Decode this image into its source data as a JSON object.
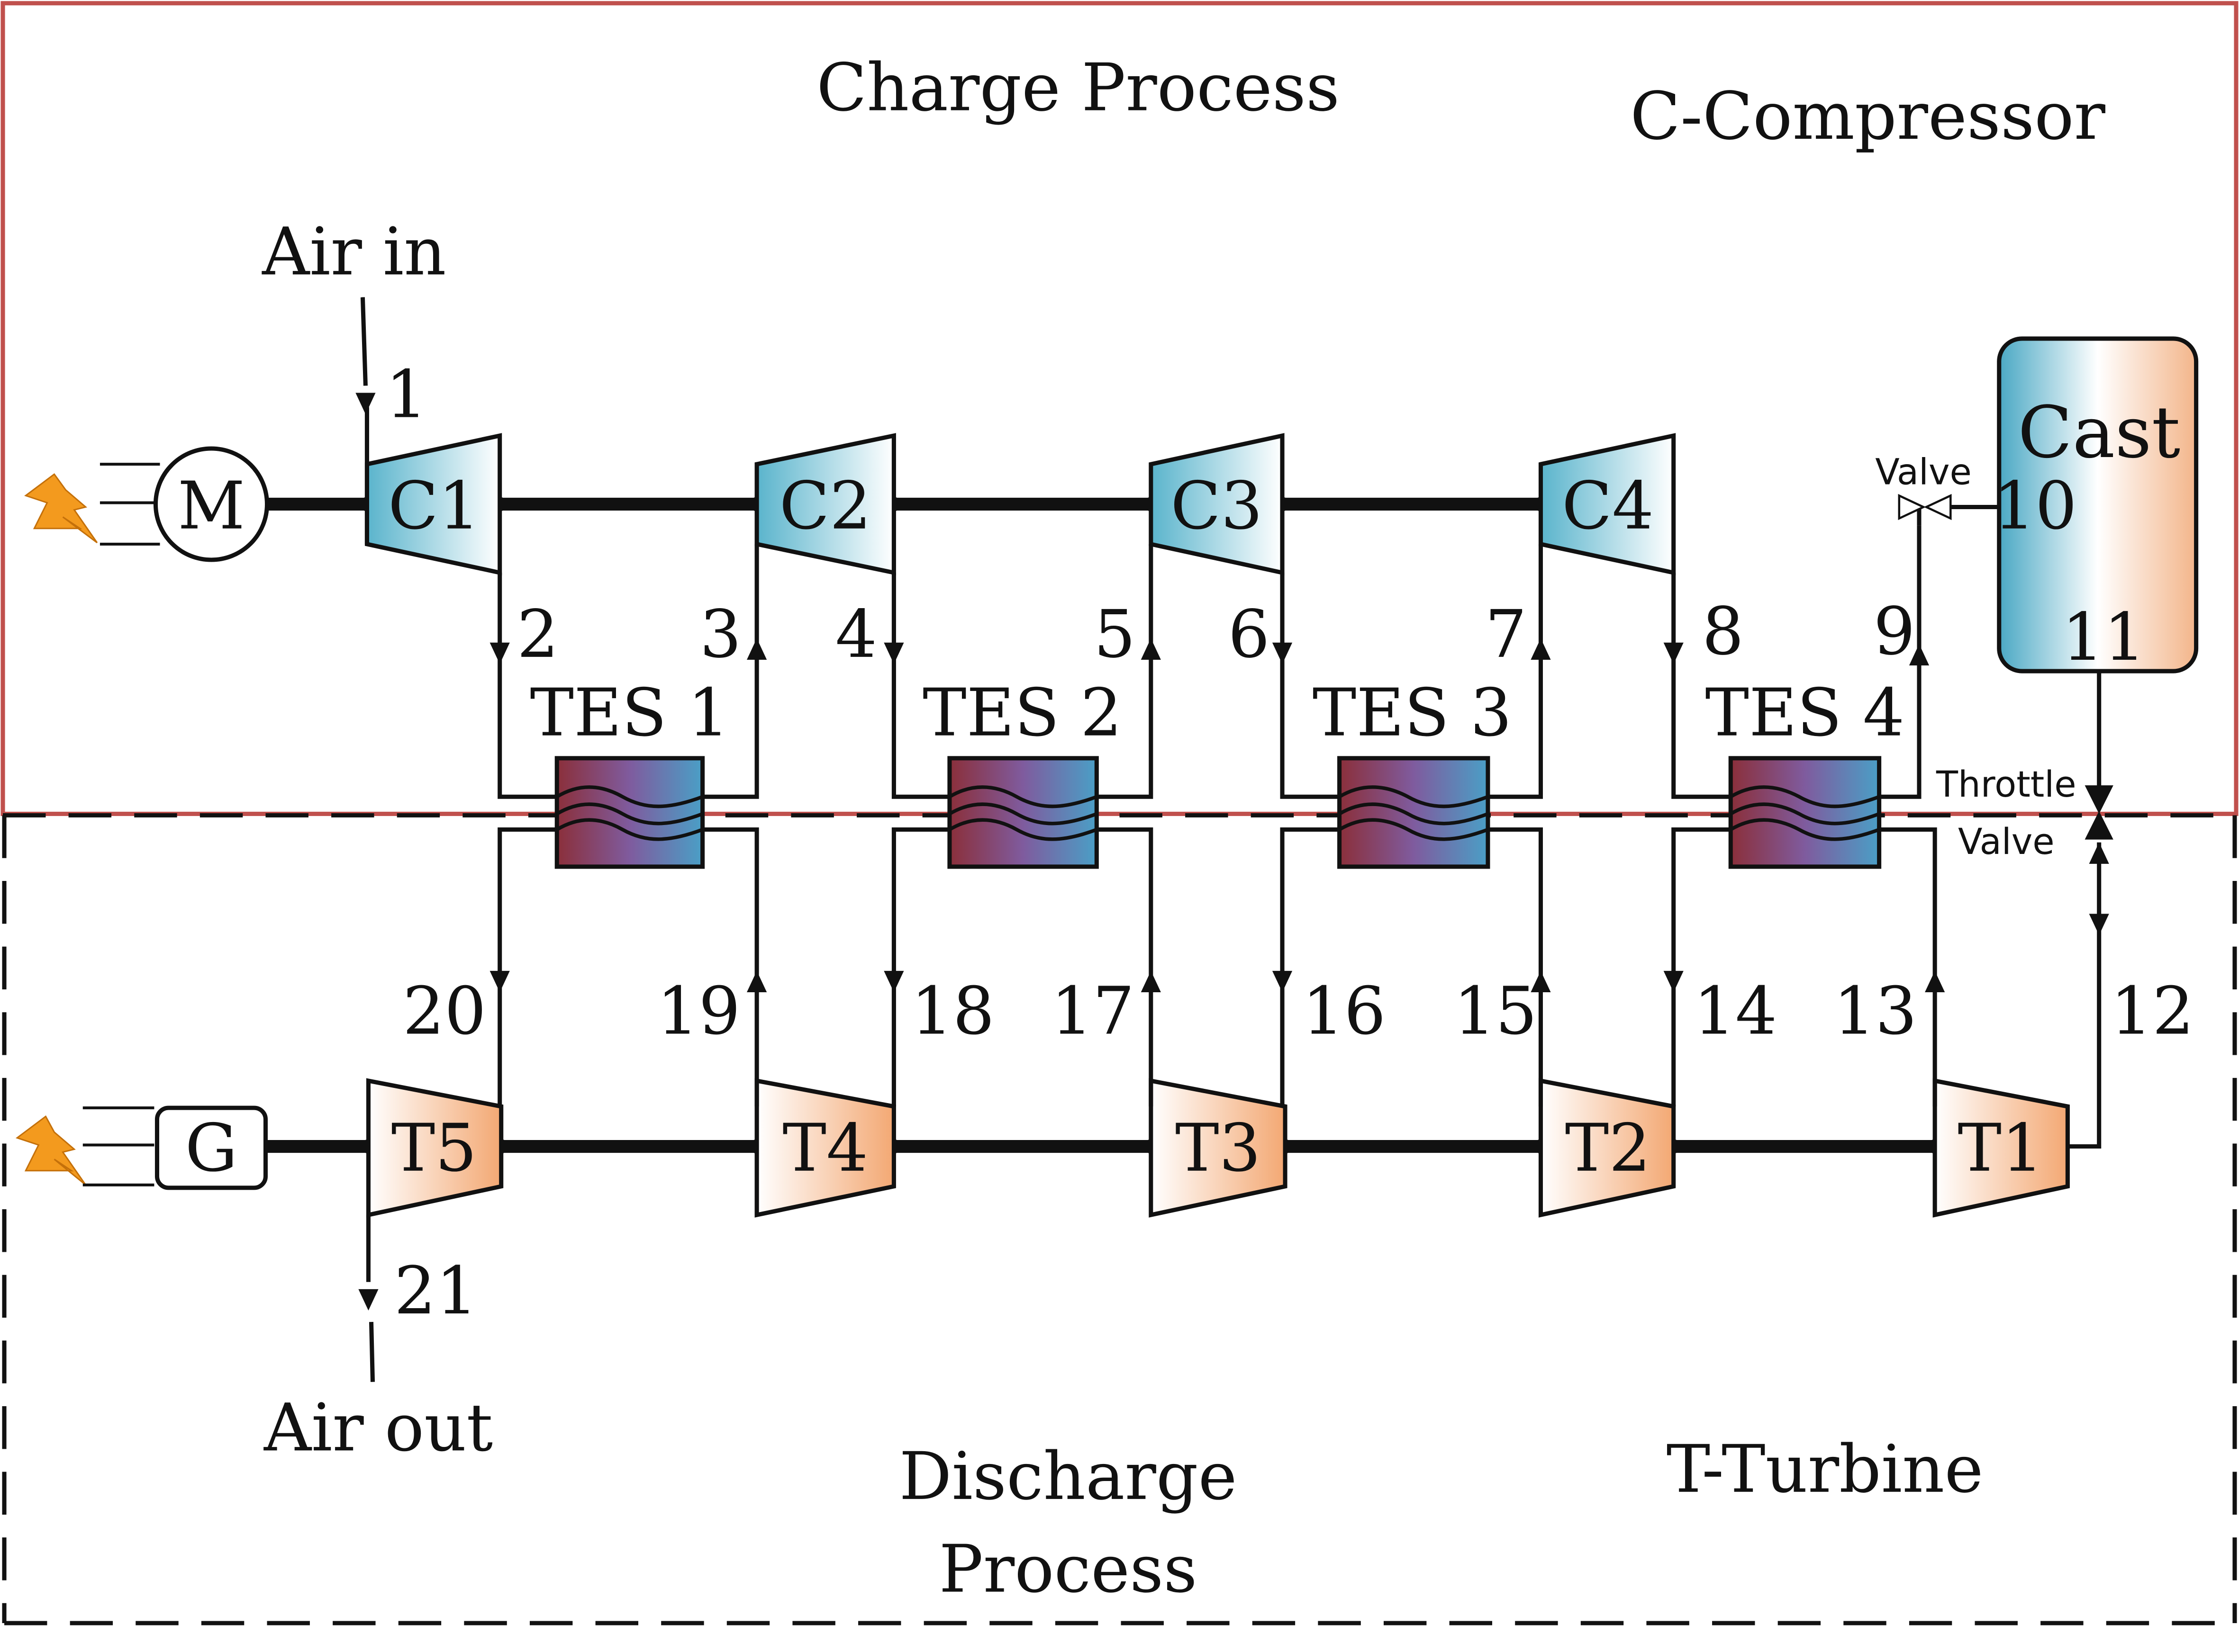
{
  "titles": {
    "charge": "Charge Process",
    "compressor_legend": "C-Compressor",
    "discharge_line1": "Discharge",
    "discharge_line2": "Process",
    "turbine_legend": "T-Turbine"
  },
  "labels": {
    "air_in": "Air in",
    "air_out": "Air out",
    "motor": "M",
    "generator": "G",
    "cavern": "Cast",
    "valve": "Valve",
    "throttle_line1": "Throttle",
    "throttle_line2": "Valve"
  },
  "compressors": [
    "C1",
    "C2",
    "C3",
    "C4"
  ],
  "turbines": [
    "T5",
    "T4",
    "T3",
    "T2",
    "T1"
  ],
  "tes_units": [
    "TES 1",
    "TES 2",
    "TES 3",
    "TES 4"
  ],
  "state_points": [
    "1",
    "2",
    "3",
    "4",
    "5",
    "6",
    "7",
    "8",
    "9",
    "10",
    "11",
    "12",
    "13",
    "14",
    "15",
    "16",
    "17",
    "18",
    "19",
    "20",
    "21"
  ],
  "colors": {
    "charge_border": "#c0504d",
    "compressor_fill_start": "#5ab4cc",
    "turbine_fill_start": "#f6b98a",
    "tes_hot": "#8b2f3a",
    "tes_cold": "#4a9fc6",
    "lightning": "#f39a1e"
  }
}
